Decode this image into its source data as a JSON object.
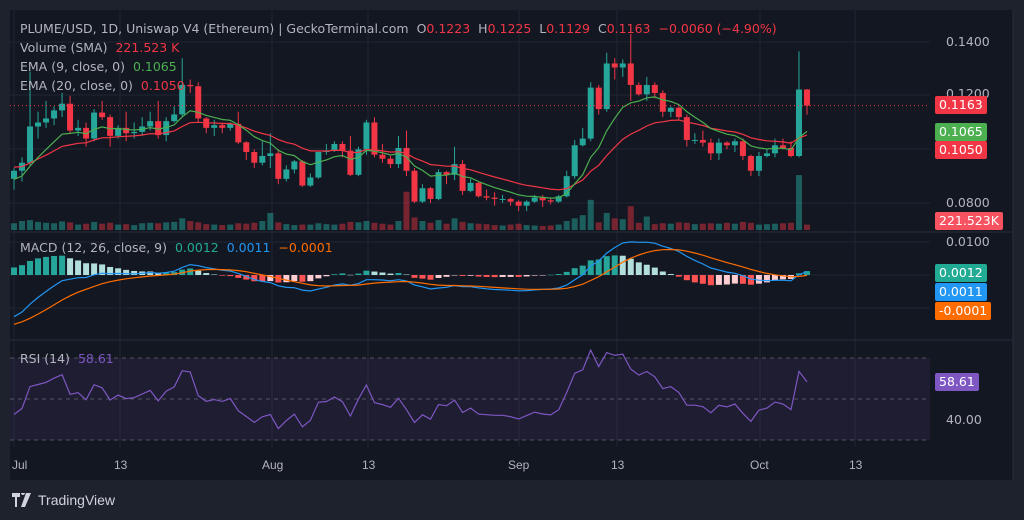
{
  "header": {
    "title": "PLUME/USD, 1D, Uniswap V4 (Ethereum) | GeckoTerminal.com",
    "o_label": "O",
    "open": "0.1223",
    "h_label": "H",
    "high": "0.1225",
    "l_label": "L",
    "low": "0.1129",
    "c_label": "C",
    "close": "0.1163",
    "change": "−0.0060 (−4.90%)"
  },
  "indicators": {
    "volume": {
      "label": "Volume (SMA)",
      "value": "221.523 K"
    },
    "ema9": {
      "label": "EMA (9, close, 0)",
      "value": "0.1065"
    },
    "ema20": {
      "label": "EMA (20, close, 0)",
      "value": "0.1050"
    },
    "macd": {
      "label": "MACD (12, 26, close, 9)",
      "hist": "0.0012",
      "macd": "0.0011",
      "signal": "−0.0001"
    },
    "rsi": {
      "label": "RSI (14)",
      "value": "58.61"
    }
  },
  "price_axis": [
    "0.1400",
    "0.1200",
    "0.0800"
  ],
  "macd_axis": [
    "0.0100"
  ],
  "rsi_axis": [
    "40.00"
  ],
  "tags": {
    "last_price": "0.1163",
    "ema9": "0.1065",
    "ema20": "0.1050",
    "volume": "221.523K",
    "hist": "0.0012",
    "macd": "0.0011",
    "signal": "-0.0001",
    "rsi": "58.61"
  },
  "time_axis": [
    "Jul",
    "13",
    "Aug",
    "13",
    "Sep",
    "13",
    "Oct",
    "13"
  ],
  "branding": "TradingView",
  "colors": {
    "up": "#26a69a",
    "down": "#f23645",
    "ema9": "#4caf50",
    "ema20": "#f23645",
    "macd": "#2196f3",
    "signal": "#ff6d00",
    "rsi": "#7e57c2",
    "background": "#131722"
  },
  "chart_data": {
    "type": "candlestick",
    "symbol": "PLUME/USD",
    "interval": "1D",
    "ylim": [
      0.075,
      0.145
    ],
    "candles": [
      [
        0.089,
        0.093,
        0.085,
        0.092
      ],
      [
        0.092,
        0.097,
        0.088,
        0.095
      ],
      [
        0.095,
        0.129,
        0.094,
        0.1085
      ],
      [
        0.1085,
        0.114,
        0.104,
        0.11
      ],
      [
        0.11,
        0.118,
        0.108,
        0.1115
      ],
      [
        0.1115,
        0.116,
        0.109,
        0.1145
      ],
      [
        0.1145,
        0.121,
        0.112,
        0.117
      ],
      [
        0.117,
        0.12,
        0.106,
        0.107
      ],
      [
        0.107,
        0.111,
        0.105,
        0.108
      ],
      [
        0.108,
        0.11,
        0.101,
        0.104
      ],
      [
        0.104,
        0.115,
        0.103,
        0.1137
      ],
      [
        0.1137,
        0.118,
        0.111,
        0.112
      ],
      [
        0.112,
        0.113,
        0.101,
        0.105
      ],
      [
        0.105,
        0.109,
        0.104,
        0.108
      ],
      [
        0.108,
        0.114,
        0.103,
        0.106
      ],
      [
        0.106,
        0.11,
        0.104,
        0.1065
      ],
      [
        0.1065,
        0.112,
        0.105,
        0.1085
      ],
      [
        0.1085,
        0.114,
        0.107,
        0.1105
      ],
      [
        0.1105,
        0.118,
        0.104,
        0.1053
      ],
      [
        0.1053,
        0.112,
        0.103,
        0.1105
      ],
      [
        0.1105,
        0.116,
        0.11,
        0.113
      ],
      [
        0.113,
        0.134,
        0.112,
        0.124
      ],
      [
        0.124,
        0.126,
        0.121,
        0.1235
      ],
      [
        0.1235,
        0.125,
        0.11,
        0.1115
      ],
      [
        0.1115,
        0.112,
        0.106,
        0.108
      ],
      [
        0.108,
        0.111,
        0.105,
        0.109
      ],
      [
        0.109,
        0.11,
        0.106,
        0.108
      ],
      [
        0.108,
        0.11,
        0.107,
        0.1095
      ],
      [
        0.1095,
        0.114,
        0.102,
        0.1026
      ],
      [
        0.1026,
        0.103,
        0.096,
        0.099
      ],
      [
        0.099,
        0.1,
        0.093,
        0.095
      ],
      [
        0.095,
        0.103,
        0.094,
        0.0975
      ],
      [
        0.0975,
        0.106,
        0.093,
        0.0985
      ],
      [
        0.0985,
        0.1,
        0.087,
        0.089
      ],
      [
        0.089,
        0.094,
        0.088,
        0.0925
      ],
      [
        0.0925,
        0.096,
        0.091,
        0.0955
      ],
      [
        0.0955,
        0.096,
        0.086,
        0.0865
      ],
      [
        0.0865,
        0.091,
        0.086,
        0.0895
      ],
      [
        0.0895,
        0.0995,
        0.089,
        0.099
      ],
      [
        0.099,
        0.102,
        0.098,
        0.0995
      ],
      [
        0.0995,
        0.103,
        0.099,
        0.102
      ],
      [
        0.102,
        0.103,
        0.097,
        0.0995
      ],
      [
        0.0995,
        0.105,
        0.09,
        0.0905
      ],
      [
        0.0905,
        0.101,
        0.09,
        0.1
      ],
      [
        0.1,
        0.111,
        0.098,
        0.11
      ],
      [
        0.11,
        0.112,
        0.097,
        0.098
      ],
      [
        0.098,
        0.102,
        0.095,
        0.0965
      ],
      [
        0.0965,
        0.0975,
        0.093,
        0.0945
      ],
      [
        0.0945,
        0.105,
        0.093,
        0.1005
      ],
      [
        0.1005,
        0.107,
        0.09,
        0.092
      ],
      [
        0.092,
        0.093,
        0.08,
        0.0805
      ],
      [
        0.0805,
        0.087,
        0.08,
        0.0855
      ],
      [
        0.0855,
        0.086,
        0.08,
        0.0815
      ],
      [
        0.0815,
        0.0925,
        0.081,
        0.0915
      ],
      [
        0.0915,
        0.092,
        0.087,
        0.0905
      ],
      [
        0.0905,
        0.101,
        0.0885,
        0.0945
      ],
      [
        0.0945,
        0.096,
        0.083,
        0.0845
      ],
      [
        0.0845,
        0.089,
        0.084,
        0.0875
      ],
      [
        0.0875,
        0.088,
        0.082,
        0.0825
      ],
      [
        0.0825,
        0.085,
        0.081,
        0.082
      ],
      [
        0.082,
        0.084,
        0.079,
        0.0815
      ],
      [
        0.0815,
        0.083,
        0.08,
        0.0815
      ],
      [
        0.0815,
        0.082,
        0.079,
        0.0805
      ],
      [
        0.0805,
        0.081,
        0.077,
        0.079
      ],
      [
        0.079,
        0.081,
        0.077,
        0.0805
      ],
      [
        0.0805,
        0.083,
        0.08,
        0.082
      ],
      [
        0.082,
        0.083,
        0.0785,
        0.081
      ],
      [
        0.081,
        0.082,
        0.0795,
        0.0805
      ],
      [
        0.0805,
        0.083,
        0.08,
        0.0825
      ],
      [
        0.0825,
        0.092,
        0.082,
        0.09
      ],
      [
        0.09,
        0.1035,
        0.089,
        0.1015
      ],
      [
        0.1015,
        0.108,
        0.101,
        0.104
      ],
      [
        0.104,
        0.125,
        0.103,
        0.123
      ],
      [
        0.123,
        0.124,
        0.113,
        0.115
      ],
      [
        0.115,
        0.136,
        0.114,
        0.132
      ],
      [
        0.132,
        0.134,
        0.126,
        0.1305
      ],
      [
        0.1305,
        0.1335,
        0.127,
        0.132
      ],
      [
        0.132,
        0.143,
        0.118,
        0.124
      ],
      [
        0.124,
        0.125,
        0.12,
        0.1205
      ],
      [
        0.1205,
        0.127,
        0.118,
        0.124
      ],
      [
        0.124,
        0.125,
        0.119,
        0.121
      ],
      [
        0.121,
        0.122,
        0.112,
        0.114
      ],
      [
        0.114,
        0.116,
        0.112,
        0.1155
      ],
      [
        0.1155,
        0.116,
        0.111,
        0.112
      ],
      [
        0.112,
        0.113,
        0.101,
        0.1035
      ],
      [
        0.1035,
        0.106,
        0.102,
        0.1035
      ],
      [
        0.1035,
        0.107,
        0.101,
        0.1025
      ],
      [
        0.1025,
        0.104,
        0.096,
        0.0985
      ],
      [
        0.0985,
        0.104,
        0.096,
        0.1025
      ],
      [
        0.1025,
        0.103,
        0.1,
        0.1015
      ],
      [
        0.1015,
        0.104,
        0.099,
        0.103
      ],
      [
        0.103,
        0.104,
        0.096,
        0.0975
      ],
      [
        0.0975,
        0.098,
        0.09,
        0.092
      ],
      [
        0.092,
        0.099,
        0.09,
        0.0975
      ],
      [
        0.0975,
        0.1,
        0.097,
        0.0985
      ],
      [
        0.0985,
        0.104,
        0.097,
        0.1015
      ],
      [
        0.1015,
        0.104,
        0.1,
        0.1005
      ],
      [
        0.1005,
        0.103,
        0.097,
        0.0975
      ],
      [
        0.0975,
        0.1365,
        0.097,
        0.1223
      ],
      [
        0.1223,
        0.1225,
        0.1129,
        0.1163
      ]
    ],
    "volume_k": [
      150,
      200,
      220,
      180,
      160,
      150,
      190,
      170,
      120,
      140,
      180,
      140,
      160,
      120,
      130,
      110,
      150,
      160,
      150,
      170,
      180,
      260,
      200,
      170,
      130,
      120,
      110,
      120,
      150,
      140,
      160,
      200,
      380,
      170,
      130,
      110,
      120,
      120,
      150,
      130,
      120,
      140,
      180,
      170,
      200,
      160,
      140,
      120,
      200,
      850,
      280,
      200,
      160,
      220,
      140,
      260,
      180,
      150,
      140,
      130,
      110,
      100,
      120,
      140,
      110,
      100,
      90,
      100,
      120,
      200,
      260,
      330,
      670,
      170,
      380,
      260,
      240,
      530,
      160,
      300,
      130,
      150,
      140,
      170,
      160,
      130,
      140,
      150,
      140,
      160,
      140,
      180,
      160,
      120,
      130,
      140,
      150,
      160,
      1220,
      120
    ],
    "volume_sma_k": 221.523,
    "macd_params": [
      12,
      26,
      9
    ],
    "rsi_period": 14,
    "rsi_levels": [
      70,
      50,
      30
    ]
  }
}
